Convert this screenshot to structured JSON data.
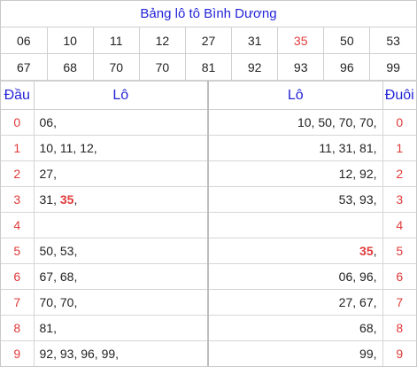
{
  "title": "Bảng lô tô Bình Dương",
  "accent_color": "#e03a3a",
  "header_color": "#2323d8",
  "numbers_row1": [
    "06",
    "10",
    "11",
    "12",
    "27",
    "31",
    "35",
    "50",
    "53"
  ],
  "numbers_row2": [
    "67",
    "68",
    "70",
    "70",
    "81",
    "92",
    "93",
    "96",
    "99"
  ],
  "highlight_number": "35",
  "headers": {
    "dau": "Đầu",
    "lo_left": "Lô",
    "lo_right": "Lô",
    "duoi": "Đuôi"
  },
  "rows": [
    {
      "dau": "0",
      "left": [
        "06"
      ],
      "right": [
        "10",
        "50",
        "70",
        "70"
      ],
      "duoi": "0"
    },
    {
      "dau": "1",
      "left": [
        "10",
        "11",
        "12"
      ],
      "right": [
        "11",
        "31",
        "81"
      ],
      "duoi": "1"
    },
    {
      "dau": "2",
      "left": [
        "27"
      ],
      "right": [
        "12",
        "92"
      ],
      "duoi": "2"
    },
    {
      "dau": "3",
      "left": [
        "31",
        "35"
      ],
      "right": [
        "53",
        "93"
      ],
      "duoi": "3"
    },
    {
      "dau": "4",
      "left": [],
      "right": [],
      "duoi": "4"
    },
    {
      "dau": "5",
      "left": [
        "50",
        "53"
      ],
      "right": [
        "35"
      ],
      "duoi": "5"
    },
    {
      "dau": "6",
      "left": [
        "67",
        "68"
      ],
      "right": [
        "06",
        "96"
      ],
      "duoi": "6"
    },
    {
      "dau": "7",
      "left": [
        "70",
        "70"
      ],
      "right": [
        "27",
        "67"
      ],
      "duoi": "7"
    },
    {
      "dau": "8",
      "left": [
        "81"
      ],
      "right": [
        "68"
      ],
      "duoi": "8"
    },
    {
      "dau": "9",
      "left": [
        "92",
        "93",
        "96",
        "99"
      ],
      "right": [
        "99"
      ],
      "duoi": "9"
    }
  ]
}
